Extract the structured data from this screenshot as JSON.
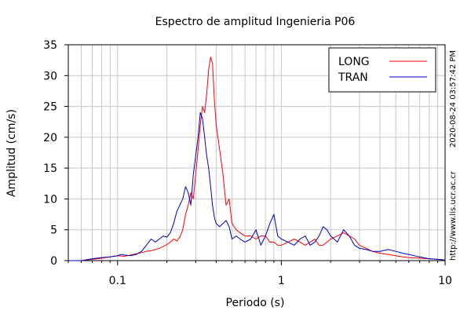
{
  "chart_data": {
    "type": "line",
    "title": "Espectro de amplitud Ingenieria P06",
    "xlabel": "Periodo (s)",
    "ylabel": "Amplitud (cm/s)",
    "xscale": "log",
    "xlim": [
      0.05,
      10
    ],
    "ylim": [
      0,
      35
    ],
    "x_ticks": [
      0.1,
      1,
      10
    ],
    "x_tick_labels": [
      "0.1",
      "1",
      "10"
    ],
    "y_ticks": [
      0,
      5,
      10,
      15,
      20,
      25,
      30,
      35
    ],
    "y_tick_labels": [
      "0",
      "5",
      "10",
      "15",
      "20",
      "25",
      "30",
      "35"
    ],
    "grid": true,
    "legend_position": "top-right",
    "series": [
      {
        "name": "LONG",
        "color": "#ff0000",
        "x": [
          0.05,
          0.06,
          0.07,
          0.08,
          0.09,
          0.1,
          0.11,
          0.12,
          0.13,
          0.14,
          0.15,
          0.16,
          0.17,
          0.18,
          0.19,
          0.2,
          0.21,
          0.22,
          0.23,
          0.24,
          0.25,
          0.26,
          0.27,
          0.28,
          0.29,
          0.3,
          0.31,
          0.32,
          0.33,
          0.34,
          0.35,
          0.36,
          0.37,
          0.38,
          0.39,
          0.4,
          0.42,
          0.44,
          0.46,
          0.48,
          0.5,
          0.53,
          0.56,
          0.6,
          0.65,
          0.7,
          0.75,
          0.8,
          0.85,
          0.9,
          0.95,
          1.0,
          1.1,
          1.2,
          1.3,
          1.4,
          1.5,
          1.6,
          1.7,
          1.8,
          1.9,
          2.0,
          2.2,
          2.4,
          2.6,
          2.8,
          3.0,
          3.3,
          3.6,
          4.0,
          4.5,
          5.0,
          5.5,
          6.0,
          7.0,
          8.0,
          9.0,
          10.0
        ],
        "y": [
          0,
          0,
          0.2,
          0.4,
          0.6,
          0.8,
          0.7,
          0.9,
          1.1,
          1.3,
          1.5,
          1.6,
          1.8,
          2.0,
          2.3,
          2.6,
          3.0,
          3.5,
          3.2,
          3.8,
          5.0,
          7.5,
          9.0,
          11.0,
          10.0,
          14.0,
          18.0,
          22.0,
          25.0,
          24.0,
          27.0,
          31.0,
          33.0,
          32.0,
          26.0,
          22.0,
          18.0,
          14.0,
          9.0,
          10.0,
          6.0,
          5.0,
          4.5,
          4.0,
          4.0,
          3.5,
          4.0,
          4.0,
          3.0,
          3.0,
          2.5,
          2.5,
          3.0,
          3.5,
          3.0,
          2.5,
          3.0,
          3.5,
          2.5,
          2.5,
          3.0,
          3.5,
          4.0,
          4.5,
          4.0,
          3.5,
          2.5,
          2.0,
          1.5,
          1.2,
          1.0,
          0.8,
          0.6,
          0.5,
          0.4,
          0.3,
          0.2,
          0.1
        ]
      },
      {
        "name": "TRAN",
        "color": "#0000c0",
        "x": [
          0.05,
          0.06,
          0.07,
          0.08,
          0.09,
          0.1,
          0.105,
          0.11,
          0.12,
          0.13,
          0.14,
          0.15,
          0.16,
          0.17,
          0.18,
          0.19,
          0.2,
          0.21,
          0.22,
          0.23,
          0.24,
          0.25,
          0.26,
          0.27,
          0.28,
          0.29,
          0.3,
          0.31,
          0.32,
          0.33,
          0.34,
          0.35,
          0.36,
          0.37,
          0.38,
          0.39,
          0.4,
          0.42,
          0.44,
          0.46,
          0.48,
          0.5,
          0.53,
          0.56,
          0.6,
          0.65,
          0.7,
          0.75,
          0.8,
          0.85,
          0.9,
          0.95,
          1.0,
          1.1,
          1.2,
          1.3,
          1.4,
          1.5,
          1.6,
          1.7,
          1.8,
          1.9,
          2.0,
          2.2,
          2.4,
          2.6,
          2.8,
          3.0,
          3.3,
          3.6,
          4.0,
          4.5,
          5.0,
          5.5,
          6.0,
          7.0,
          8.0,
          9.0,
          10.0
        ],
        "y": [
          0,
          0,
          0.3,
          0.5,
          0.6,
          0.8,
          1.0,
          0.9,
          0.8,
          1.0,
          1.5,
          2.5,
          3.5,
          3.0,
          3.5,
          4.0,
          3.8,
          4.5,
          6.0,
          8.0,
          9.0,
          10.0,
          12.0,
          11.0,
          9.0,
          14.0,
          17.0,
          20.0,
          24.0,
          23.0,
          20.0,
          17.0,
          15.0,
          12.0,
          9.0,
          7.0,
          6.0,
          5.5,
          6.0,
          6.5,
          5.5,
          3.5,
          4.0,
          3.5,
          3.0,
          3.5,
          5.0,
          2.5,
          4.0,
          6.0,
          7.5,
          4.0,
          3.5,
          3.0,
          2.5,
          3.5,
          4.0,
          2.5,
          3.0,
          4.0,
          5.5,
          5.0,
          4.0,
          3.0,
          5.0,
          4.0,
          2.5,
          2.0,
          1.8,
          1.5,
          1.5,
          1.8,
          1.5,
          1.2,
          1.0,
          0.6,
          0.3,
          0.2,
          0.1
        ]
      }
    ]
  },
  "side": {
    "timestamp": "2020-08-24 03:57:42 PM",
    "url": "http://www.lis.ucr.ac.cr"
  }
}
